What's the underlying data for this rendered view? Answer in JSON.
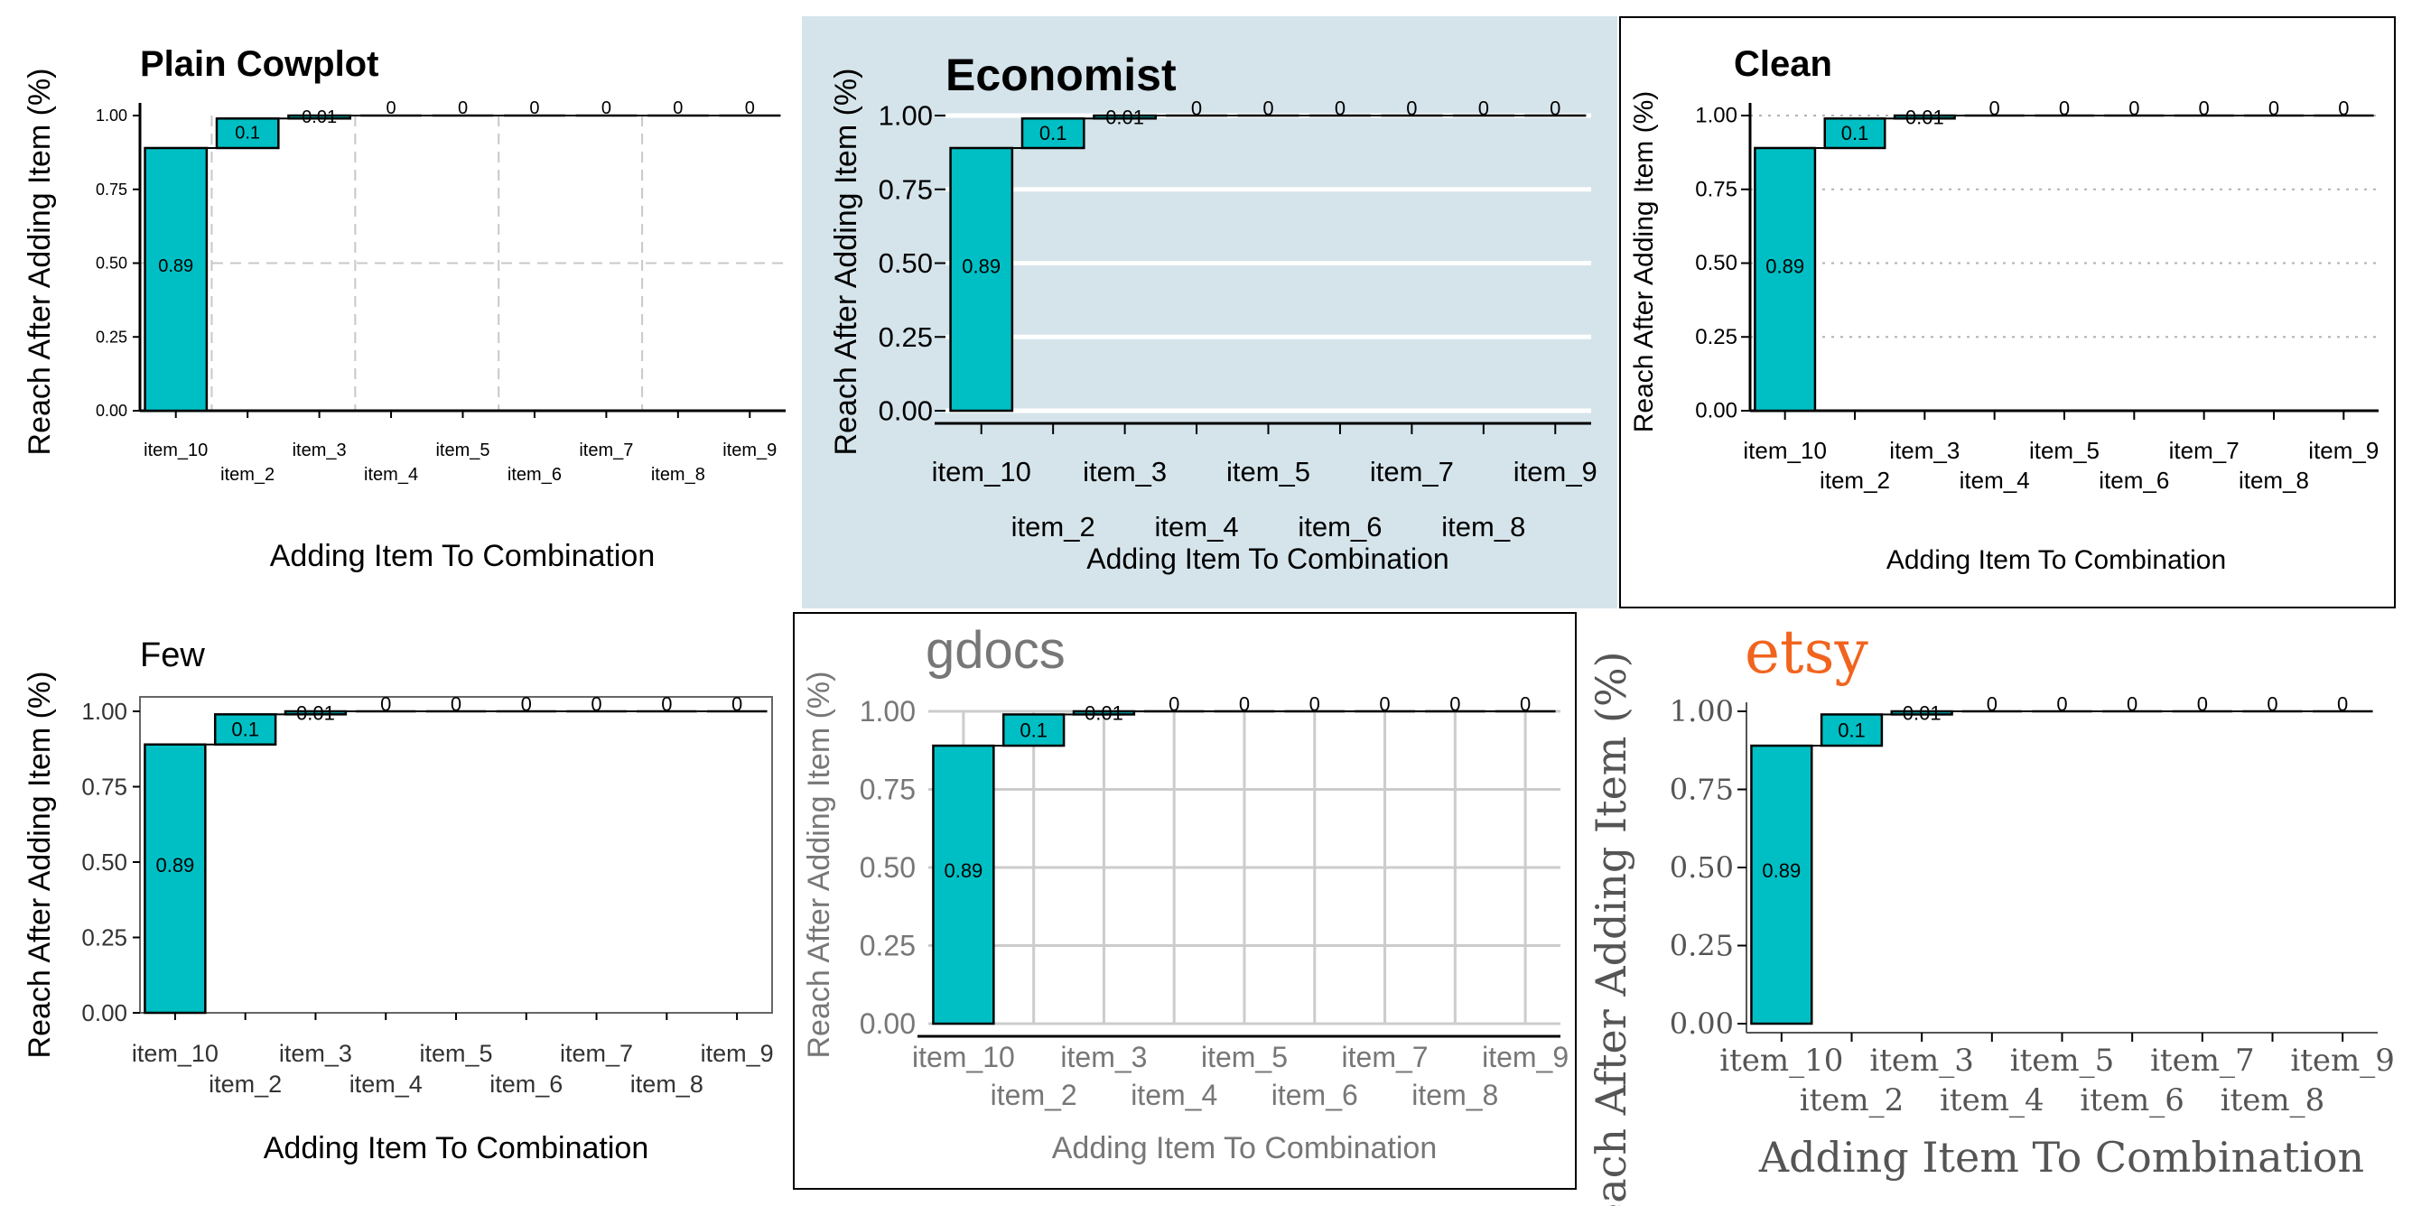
{
  "figure": {
    "xlabel": "Adding Item To Combination",
    "ylabel": "Reach After Adding Item (%)"
  },
  "chart_data": [
    {
      "type": "bar",
      "style": "waterfall",
      "title": "Plain Cowplot",
      "theme": "cowplot",
      "categories": [
        "item_10",
        "item_2",
        "item_3",
        "item_4",
        "item_5",
        "item_6",
        "item_7",
        "item_8",
        "item_9"
      ],
      "values": [
        0.89,
        0.1,
        0.01,
        0,
        0,
        0,
        0,
        0,
        0
      ],
      "labels": [
        "0.89",
        "0.1",
        "0.01",
        "0",
        "0",
        "0",
        "0",
        "0",
        "0"
      ],
      "xlabel": "Adding Item To Combination",
      "ylabel": "Reach After Adding Item (%)",
      "ylim": [
        0,
        1
      ],
      "yticks": [
        "0.00",
        "0.25",
        "0.50",
        "0.75",
        "1.00"
      ],
      "grid": "dashed",
      "bar_color": "#00bfc4"
    },
    {
      "type": "bar",
      "style": "waterfall",
      "title": "Economist",
      "theme": "economist",
      "categories": [
        "item_10",
        "item_2",
        "item_3",
        "item_4",
        "item_5",
        "item_6",
        "item_7",
        "item_8",
        "item_9"
      ],
      "values": [
        0.89,
        0.1,
        0.01,
        0,
        0,
        0,
        0,
        0,
        0
      ],
      "labels": [
        "0.89",
        "0.1",
        "0.01",
        "0",
        "0",
        "0",
        "0",
        "0",
        "0"
      ],
      "xlabel": "Adding Item To Combination",
      "ylabel": "Reach After Adding Item (%)",
      "ylim": [
        0,
        1
      ],
      "yticks": [
        "0.00",
        "0.25",
        "0.50",
        "0.75",
        "1.00"
      ],
      "grid": "horizontal",
      "panel_color": "#d5e4eb",
      "bar_color": "#00bfc4"
    },
    {
      "type": "bar",
      "style": "waterfall",
      "title": "Clean",
      "theme": "clean",
      "categories": [
        "item_10",
        "item_2",
        "item_3",
        "item_4",
        "item_5",
        "item_6",
        "item_7",
        "item_8",
        "item_9"
      ],
      "values": [
        0.89,
        0.1,
        0.01,
        0,
        0,
        0,
        0,
        0,
        0
      ],
      "labels": [
        "0.89",
        "0.1",
        "0.01",
        "0",
        "0",
        "0",
        "0",
        "0",
        "0"
      ],
      "xlabel": "Adding Item To Combination",
      "ylabel": "Reach After Adding Item (%)",
      "ylim": [
        0,
        1
      ],
      "yticks": [
        "0.00",
        "0.25",
        "0.50",
        "0.75",
        "1.00"
      ],
      "grid": "dotted",
      "bar_color": "#00bfc4"
    },
    {
      "type": "bar",
      "style": "waterfall",
      "title": "Few",
      "theme": "few",
      "categories": [
        "item_10",
        "item_2",
        "item_3",
        "item_4",
        "item_5",
        "item_6",
        "item_7",
        "item_8",
        "item_9"
      ],
      "values": [
        0.89,
        0.1,
        0.01,
        0,
        0,
        0,
        0,
        0,
        0
      ],
      "labels": [
        "0.89",
        "0.1",
        "0.01",
        "0",
        "0",
        "0",
        "0",
        "0",
        "0"
      ],
      "xlabel": "Adding Item To Combination",
      "ylabel": "Reach After Adding Item (%)",
      "ylim": [
        0,
        1
      ],
      "yticks": [
        "0.00",
        "0.25",
        "0.50",
        "0.75",
        "1.00"
      ],
      "grid": "none",
      "bar_color": "#00bfc4"
    },
    {
      "type": "bar",
      "style": "waterfall",
      "title": "gdocs",
      "theme": "gdocs",
      "categories": [
        "item_10",
        "item_2",
        "item_3",
        "item_4",
        "item_5",
        "item_6",
        "item_7",
        "item_8",
        "item_9"
      ],
      "values": [
        0.89,
        0.1,
        0.01,
        0,
        0,
        0,
        0,
        0,
        0
      ],
      "labels": [
        "0.89",
        "0.1",
        "0.01",
        "0",
        "0",
        "0",
        "0",
        "0",
        "0"
      ],
      "xlabel": "Adding Item To Combination",
      "ylabel": "Reach After Adding Item (%)",
      "ylim": [
        0,
        1
      ],
      "yticks": [
        "0.00",
        "0.25",
        "0.50",
        "0.75",
        "1.00"
      ],
      "grid": "full",
      "bar_color": "#00bfc4"
    },
    {
      "type": "bar",
      "style": "waterfall",
      "title": "etsy",
      "theme": "etsy",
      "categories": [
        "item_10",
        "item_2",
        "item_3",
        "item_4",
        "item_5",
        "item_6",
        "item_7",
        "item_8",
        "item_9"
      ],
      "values": [
        0.89,
        0.1,
        0.01,
        0,
        0,
        0,
        0,
        0,
        0
      ],
      "labels": [
        "0.89",
        "0.1",
        "0.01",
        "0",
        "0",
        "0",
        "0",
        "0",
        "0"
      ],
      "xlabel": "Adding Item To Combination",
      "ylabel": "Reach After Adding Item (%)",
      "ylim": [
        0,
        1
      ],
      "yticks": [
        "0.00",
        "0.25",
        "0.50",
        "0.75",
        "1.00"
      ],
      "grid": "none",
      "title_color": "#f1641e",
      "bar_color": "#00bfc4"
    }
  ]
}
